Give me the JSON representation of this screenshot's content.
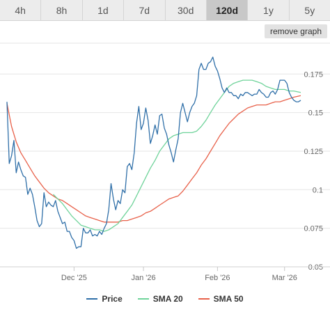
{
  "tabs": [
    {
      "label": "4h",
      "active": false
    },
    {
      "label": "8h",
      "active": false
    },
    {
      "label": "1d",
      "active": false
    },
    {
      "label": "7d",
      "active": false
    },
    {
      "label": "30d",
      "active": false
    },
    {
      "label": "120d",
      "active": true
    },
    {
      "label": "1y",
      "active": false
    },
    {
      "label": "5y",
      "active": false
    }
  ],
  "remove_graph_label": "remove graph",
  "legend": [
    {
      "label": "Price",
      "color": "#2f6fa8"
    },
    {
      "label": "SMA 20",
      "color": "#6fd39a"
    },
    {
      "label": "SMA 50",
      "color": "#e8614a"
    }
  ],
  "chart_data": {
    "type": "line",
    "x_tick_labels": [
      "Dec '25",
      "Jan '26",
      "Feb '26",
      "Mar '26"
    ],
    "x_tick_days": [
      29,
      59,
      91,
      120
    ],
    "x_range": [
      0,
      127
    ],
    "y_ticks": [
      0.05,
      0.075,
      0.1,
      0.125,
      0.15,
      0.175
    ],
    "y_tick_labels": [
      "0.05",
      "0.075",
      "0.1",
      "0.125",
      "0.15",
      "0.175"
    ],
    "ylim": [
      0.05,
      0.195
    ],
    "grid": true,
    "legend_position": "bottom",
    "series": [
      {
        "name": "Price",
        "color": "#2f6fa8",
        "points": [
          [
            0,
            0.157
          ],
          [
            1,
            0.117
          ],
          [
            2,
            0.122
          ],
          [
            3,
            0.132
          ],
          [
            4,
            0.111
          ],
          [
            5,
            0.118
          ],
          [
            6,
            0.113
          ],
          [
            7,
            0.109
          ],
          [
            8,
            0.108
          ],
          [
            9,
            0.097
          ],
          [
            10,
            0.101
          ],
          [
            11,
            0.097
          ],
          [
            12,
            0.089
          ],
          [
            13,
            0.08
          ],
          [
            14,
            0.076
          ],
          [
            15,
            0.078
          ],
          [
            16,
            0.098
          ],
          [
            17,
            0.089
          ],
          [
            18,
            0.092
          ],
          [
            19,
            0.09
          ],
          [
            20,
            0.089
          ],
          [
            21,
            0.093
          ],
          [
            22,
            0.086
          ],
          [
            23,
            0.082
          ],
          [
            24,
            0.078
          ],
          [
            25,
            0.079
          ],
          [
            26,
            0.073
          ],
          [
            27,
            0.073
          ],
          [
            28,
            0.069
          ],
          [
            29,
            0.067
          ],
          [
            30,
            0.062
          ],
          [
            31,
            0.063
          ],
          [
            32,
            0.063
          ],
          [
            33,
            0.075
          ],
          [
            34,
            0.072
          ],
          [
            35,
            0.072
          ],
          [
            36,
            0.074
          ],
          [
            37,
            0.07
          ],
          [
            38,
            0.071
          ],
          [
            39,
            0.07
          ],
          [
            40,
            0.073
          ],
          [
            41,
            0.071
          ],
          [
            42,
            0.075
          ],
          [
            43,
            0.078
          ],
          [
            44,
            0.087
          ],
          [
            45,
            0.104
          ],
          [
            46,
            0.094
          ],
          [
            47,
            0.087
          ],
          [
            48,
            0.093
          ],
          [
            49,
            0.091
          ],
          [
            50,
            0.1
          ],
          [
            51,
            0.098
          ],
          [
            52,
            0.115
          ],
          [
            53,
            0.117
          ],
          [
            54,
            0.113
          ],
          [
            55,
            0.124
          ],
          [
            56,
            0.143
          ],
          [
            57,
            0.154
          ],
          [
            58,
            0.139
          ],
          [
            59,
            0.143
          ],
          [
            60,
            0.153
          ],
          [
            61,
            0.145
          ],
          [
            62,
            0.13
          ],
          [
            63,
            0.135
          ],
          [
            64,
            0.142
          ],
          [
            65,
            0.136
          ],
          [
            66,
            0.148
          ],
          [
            67,
            0.149
          ],
          [
            68,
            0.14
          ],
          [
            69,
            0.136
          ],
          [
            70,
            0.129
          ],
          [
            71,
            0.124
          ],
          [
            72,
            0.118
          ],
          [
            73,
            0.126
          ],
          [
            74,
            0.133
          ],
          [
            75,
            0.15
          ],
          [
            76,
            0.156
          ],
          [
            77,
            0.15
          ],
          [
            78,
            0.144
          ],
          [
            79,
            0.15
          ],
          [
            80,
            0.154
          ],
          [
            81,
            0.156
          ],
          [
            82,
            0.161
          ],
          [
            83,
            0.178
          ],
          [
            84,
            0.182
          ],
          [
            85,
            0.178
          ],
          [
            86,
            0.178
          ],
          [
            87,
            0.182
          ],
          [
            88,
            0.183
          ],
          [
            89,
            0.186
          ],
          [
            90,
            0.18
          ],
          [
            91,
            0.177
          ],
          [
            92,
            0.172
          ],
          [
            93,
            0.166
          ],
          [
            94,
            0.163
          ],
          [
            95,
            0.166
          ],
          [
            96,
            0.163
          ],
          [
            97,
            0.163
          ],
          [
            98,
            0.161
          ],
          [
            99,
            0.161
          ],
          [
            100,
            0.159
          ],
          [
            101,
            0.162
          ],
          [
            102,
            0.161
          ],
          [
            103,
            0.163
          ],
          [
            104,
            0.163
          ],
          [
            105,
            0.162
          ],
          [
            106,
            0.161
          ],
          [
            107,
            0.162
          ],
          [
            108,
            0.162
          ],
          [
            109,
            0.165
          ],
          [
            110,
            0.163
          ],
          [
            111,
            0.162
          ],
          [
            112,
            0.16
          ],
          [
            113,
            0.16
          ],
          [
            114,
            0.163
          ],
          [
            115,
            0.164
          ],
          [
            116,
            0.162
          ],
          [
            117,
            0.165
          ],
          [
            118,
            0.171
          ],
          [
            119,
            0.171
          ],
          [
            120,
            0.171
          ],
          [
            121,
            0.169
          ],
          [
            122,
            0.163
          ],
          [
            123,
            0.16
          ],
          [
            124,
            0.158
          ],
          [
            125,
            0.157
          ],
          [
            126,
            0.157
          ],
          [
            127,
            0.158
          ]
        ]
      },
      {
        "name": "SMA 20",
        "color": "#6fd39a",
        "points": [
          [
            20,
            0.097
          ],
          [
            22,
            0.094
          ],
          [
            24,
            0.091
          ],
          [
            26,
            0.087
          ],
          [
            28,
            0.083
          ],
          [
            30,
            0.08
          ],
          [
            32,
            0.077
          ],
          [
            34,
            0.076
          ],
          [
            36,
            0.075
          ],
          [
            38,
            0.074
          ],
          [
            40,
            0.074
          ],
          [
            42,
            0.073
          ],
          [
            44,
            0.074
          ],
          [
            46,
            0.076
          ],
          [
            48,
            0.078
          ],
          [
            50,
            0.082
          ],
          [
            52,
            0.086
          ],
          [
            54,
            0.09
          ],
          [
            56,
            0.096
          ],
          [
            58,
            0.102
          ],
          [
            60,
            0.108
          ],
          [
            62,
            0.114
          ],
          [
            64,
            0.119
          ],
          [
            66,
            0.125
          ],
          [
            68,
            0.129
          ],
          [
            70,
            0.133
          ],
          [
            72,
            0.135
          ],
          [
            74,
            0.136
          ],
          [
            76,
            0.137
          ],
          [
            78,
            0.137
          ],
          [
            80,
            0.137
          ],
          [
            82,
            0.138
          ],
          [
            84,
            0.141
          ],
          [
            86,
            0.145
          ],
          [
            88,
            0.15
          ],
          [
            90,
            0.155
          ],
          [
            92,
            0.159
          ],
          [
            94,
            0.163
          ],
          [
            96,
            0.167
          ],
          [
            98,
            0.169
          ],
          [
            100,
            0.17
          ],
          [
            102,
            0.171
          ],
          [
            104,
            0.171
          ],
          [
            106,
            0.171
          ],
          [
            108,
            0.17
          ],
          [
            110,
            0.169
          ],
          [
            112,
            0.167
          ],
          [
            114,
            0.166
          ],
          [
            116,
            0.165
          ],
          [
            118,
            0.165
          ],
          [
            120,
            0.165
          ],
          [
            122,
            0.164
          ],
          [
            124,
            0.164
          ],
          [
            127,
            0.163
          ]
        ]
      },
      {
        "name": "SMA 50",
        "color": "#e8614a",
        "points": [
          [
            0,
            0.156
          ],
          [
            2,
            0.141
          ],
          [
            4,
            0.131
          ],
          [
            6,
            0.124
          ],
          [
            8,
            0.119
          ],
          [
            10,
            0.114
          ],
          [
            12,
            0.109
          ],
          [
            14,
            0.105
          ],
          [
            16,
            0.101
          ],
          [
            18,
            0.098
          ],
          [
            20,
            0.096
          ],
          [
            22,
            0.094
          ],
          [
            24,
            0.093
          ],
          [
            26,
            0.091
          ],
          [
            28,
            0.089
          ],
          [
            30,
            0.087
          ],
          [
            32,
            0.085
          ],
          [
            34,
            0.083
          ],
          [
            36,
            0.082
          ],
          [
            38,
            0.081
          ],
          [
            40,
            0.08
          ],
          [
            42,
            0.079
          ],
          [
            44,
            0.079
          ],
          [
            46,
            0.079
          ],
          [
            48,
            0.079
          ],
          [
            50,
            0.08
          ],
          [
            52,
            0.08
          ],
          [
            54,
            0.081
          ],
          [
            56,
            0.082
          ],
          [
            58,
            0.083
          ],
          [
            60,
            0.085
          ],
          [
            62,
            0.086
          ],
          [
            64,
            0.088
          ],
          [
            66,
            0.09
          ],
          [
            68,
            0.092
          ],
          [
            70,
            0.094
          ],
          [
            72,
            0.095
          ],
          [
            74,
            0.096
          ],
          [
            76,
            0.099
          ],
          [
            78,
            0.103
          ],
          [
            80,
            0.107
          ],
          [
            82,
            0.111
          ],
          [
            84,
            0.116
          ],
          [
            86,
            0.12
          ],
          [
            88,
            0.125
          ],
          [
            90,
            0.13
          ],
          [
            92,
            0.135
          ],
          [
            94,
            0.139
          ],
          [
            96,
            0.143
          ],
          [
            98,
            0.146
          ],
          [
            100,
            0.149
          ],
          [
            102,
            0.151
          ],
          [
            104,
            0.153
          ],
          [
            106,
            0.154
          ],
          [
            108,
            0.155
          ],
          [
            110,
            0.155
          ],
          [
            112,
            0.155
          ],
          [
            114,
            0.156
          ],
          [
            116,
            0.157
          ],
          [
            118,
            0.157
          ],
          [
            120,
            0.158
          ],
          [
            122,
            0.159
          ],
          [
            124,
            0.16
          ],
          [
            127,
            0.161
          ]
        ]
      }
    ]
  }
}
